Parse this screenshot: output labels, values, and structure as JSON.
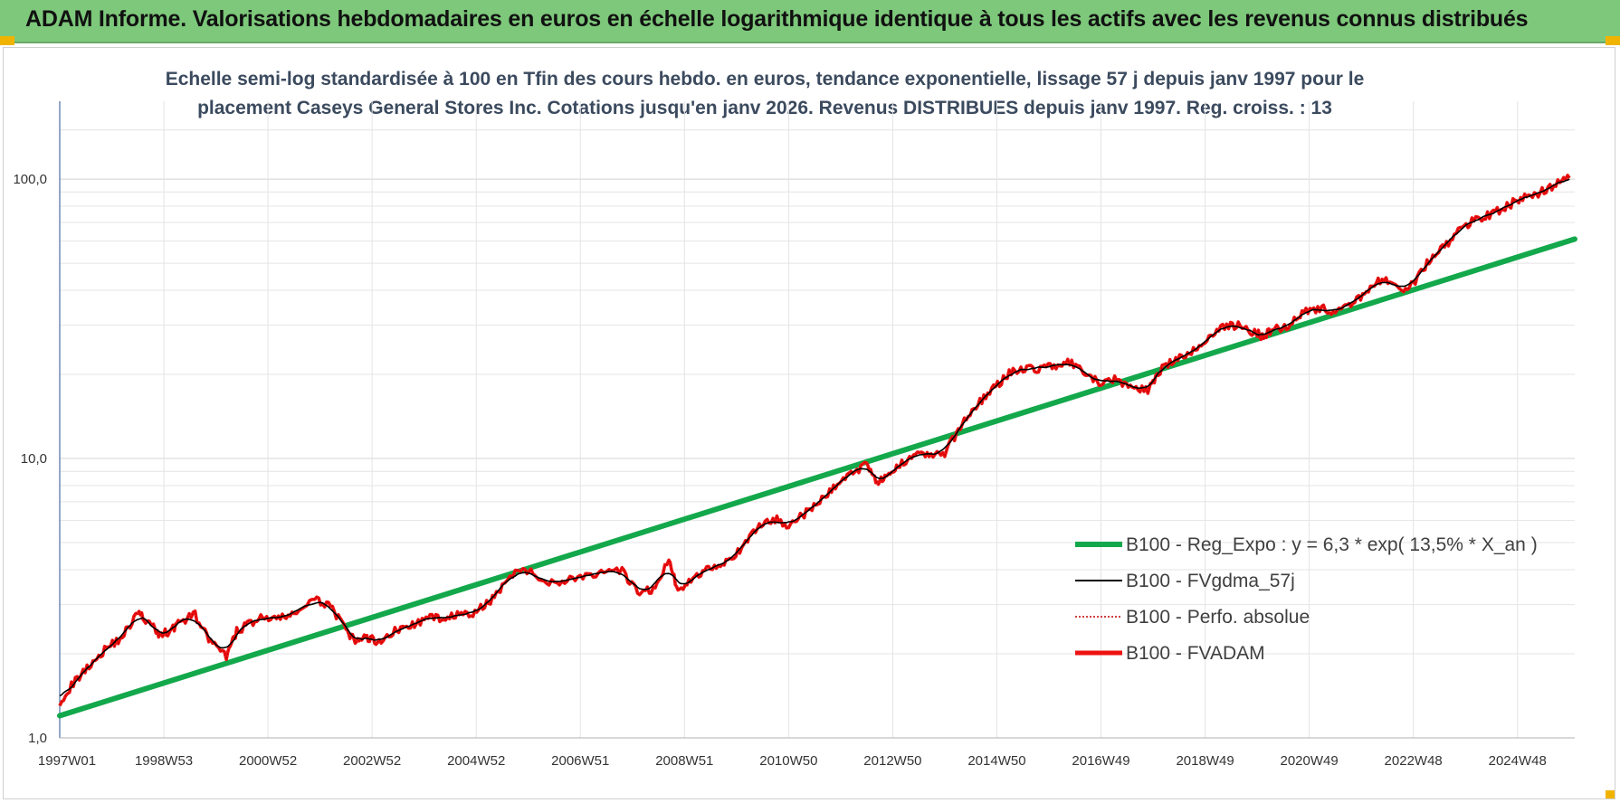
{
  "header": {
    "title": "ADAM Informe. Valorisations hebdomadaires en euros en échelle logarithmique identique à tous les actifs avec les revenus connus distribués"
  },
  "chart_data": {
    "type": "line",
    "title_line1": "Echelle semi-log standardisée à 100 en Tfin des cours hebdo. en euros, tendance exponentielle, lissage 57 j depuis janv 1997 pour le",
    "title_line2": "placement Caseys General Stores Inc. Cotations jusqu'en janv 2026. Revenus DISTRIBUES depuis janv 1997. Reg. croiss. : 13",
    "y_scale": "log",
    "ylim": [
      1,
      190
    ],
    "xlim": [
      1997.0,
      2026.1
    ],
    "y_ticks": [
      {
        "value": 1,
        "label": "1,0"
      },
      {
        "value": 10,
        "label": "10,0"
      },
      {
        "value": 100,
        "label": "100,0"
      }
    ],
    "x_ticks": [
      {
        "value": 1997.0,
        "label": "1997W01"
      },
      {
        "value": 1999.0,
        "label": "1998W53"
      },
      {
        "value": 2001.0,
        "label": "2000W52"
      },
      {
        "value": 2003.0,
        "label": "2002W52"
      },
      {
        "value": 2005.0,
        "label": "2004W52"
      },
      {
        "value": 2007.0,
        "label": "2006W51"
      },
      {
        "value": 2009.0,
        "label": "2008W51"
      },
      {
        "value": 2011.0,
        "label": "2010W50"
      },
      {
        "value": 2013.0,
        "label": "2012W50"
      },
      {
        "value": 2015.0,
        "label": "2014W50"
      },
      {
        "value": 2017.0,
        "label": "2016W49"
      },
      {
        "value": 2019.0,
        "label": "2018W49"
      },
      {
        "value": 2021.0,
        "label": "2020W49"
      },
      {
        "value": 2023.0,
        "label": "2022W48"
      },
      {
        "value": 2025.0,
        "label": "2024W48"
      }
    ],
    "grid": true,
    "legend_position": "bottom-right",
    "colors": {
      "reg": "#13a84b",
      "smooth": "#000000",
      "perfo": "#c00000",
      "adam": "#ee1111"
    },
    "series": [
      {
        "name": "B100 - Reg_Expo : y = 6,3 * exp( 13,5% *  X_an )",
        "style": "thick-green",
        "x": [
          1997.0,
          2026.1
        ],
        "y": [
          1.2,
          61
        ]
      },
      {
        "name": "B100 - FVgdma_57j",
        "style": "thin-black-smoothed",
        "derived_from": "B100 - FVADAM"
      },
      {
        "name": "B100 - Perfo. absolue",
        "style": "dotted-red"
      },
      {
        "name": "B100 - FVADAM",
        "style": "thick-red",
        "x": [
          1997.0,
          1997.3,
          1997.6,
          1997.9,
          1998.2,
          1998.5,
          1998.7,
          1998.9,
          1999.1,
          1999.3,
          1999.6,
          1999.9,
          2000.2,
          2000.4,
          2000.6,
          2000.9,
          2001.2,
          2001.5,
          2001.9,
          2002.2,
          2002.5,
          2002.7,
          2002.9,
          2003.1,
          2003.4,
          2003.7,
          2004.0,
          2004.3,
          2004.6,
          2004.9,
          2005.2,
          2005.5,
          2005.9,
          2006.2,
          2006.6,
          2007.0,
          2007.4,
          2007.8,
          2008.1,
          2008.4,
          2008.7,
          2008.9,
          2009.2,
          2009.5,
          2009.8,
          2010.1,
          2010.4,
          2010.7,
          2011.0,
          2011.3,
          2011.6,
          2011.9,
          2012.2,
          2012.5,
          2012.7,
          2012.9,
          2013.1,
          2013.4,
          2013.7,
          2014.0,
          2014.3,
          2014.6,
          2014.9,
          2015.2,
          2015.5,
          2015.8,
          2016.1,
          2016.4,
          2016.7,
          2017.0,
          2017.3,
          2017.6,
          2017.9,
          2018.1,
          2018.4,
          2018.7,
          2019.0,
          2019.3,
          2019.6,
          2019.9,
          2020.1,
          2020.3,
          2020.6,
          2020.9,
          2021.2,
          2021.5,
          2021.8,
          2022.1,
          2022.4,
          2022.7,
          2023.0,
          2023.3,
          2023.6,
          2023.9,
          2024.2,
          2024.5,
          2024.8,
          2025.1,
          2025.4,
          2025.7,
          2026.0
        ],
        "y": [
          1.35,
          1.6,
          1.85,
          2.1,
          2.3,
          2.8,
          2.6,
          2.35,
          2.4,
          2.6,
          2.75,
          2.2,
          1.95,
          2.4,
          2.55,
          2.7,
          2.65,
          2.8,
          3.1,
          3.0,
          2.4,
          2.2,
          2.3,
          2.2,
          2.4,
          2.5,
          2.65,
          2.7,
          2.75,
          2.75,
          3.0,
          3.5,
          4.1,
          3.7,
          3.6,
          3.8,
          3.85,
          3.95,
          3.3,
          3.4,
          4.3,
          3.3,
          3.8,
          4.1,
          4.3,
          4.7,
          5.7,
          6.1,
          5.8,
          6.3,
          7.0,
          8.0,
          8.8,
          9.6,
          8.3,
          8.5,
          9.3,
          10.5,
          10.3,
          10.4,
          13.0,
          15.5,
          17.5,
          20.0,
          21.0,
          21.0,
          21.5,
          22.0,
          20.0,
          18.5,
          19.2,
          18.0,
          17.5,
          20.5,
          22.5,
          23.5,
          26.5,
          29.5,
          30.0,
          28.5,
          27.5,
          29.0,
          30.0,
          34.0,
          34.5,
          33.5,
          35.0,
          40.0,
          44.0,
          40.0,
          42.0,
          51.0,
          57.0,
          66.0,
          72.0,
          75.0,
          80.0,
          86.0,
          89.0,
          95.0,
          101.0
        ]
      }
    ]
  }
}
